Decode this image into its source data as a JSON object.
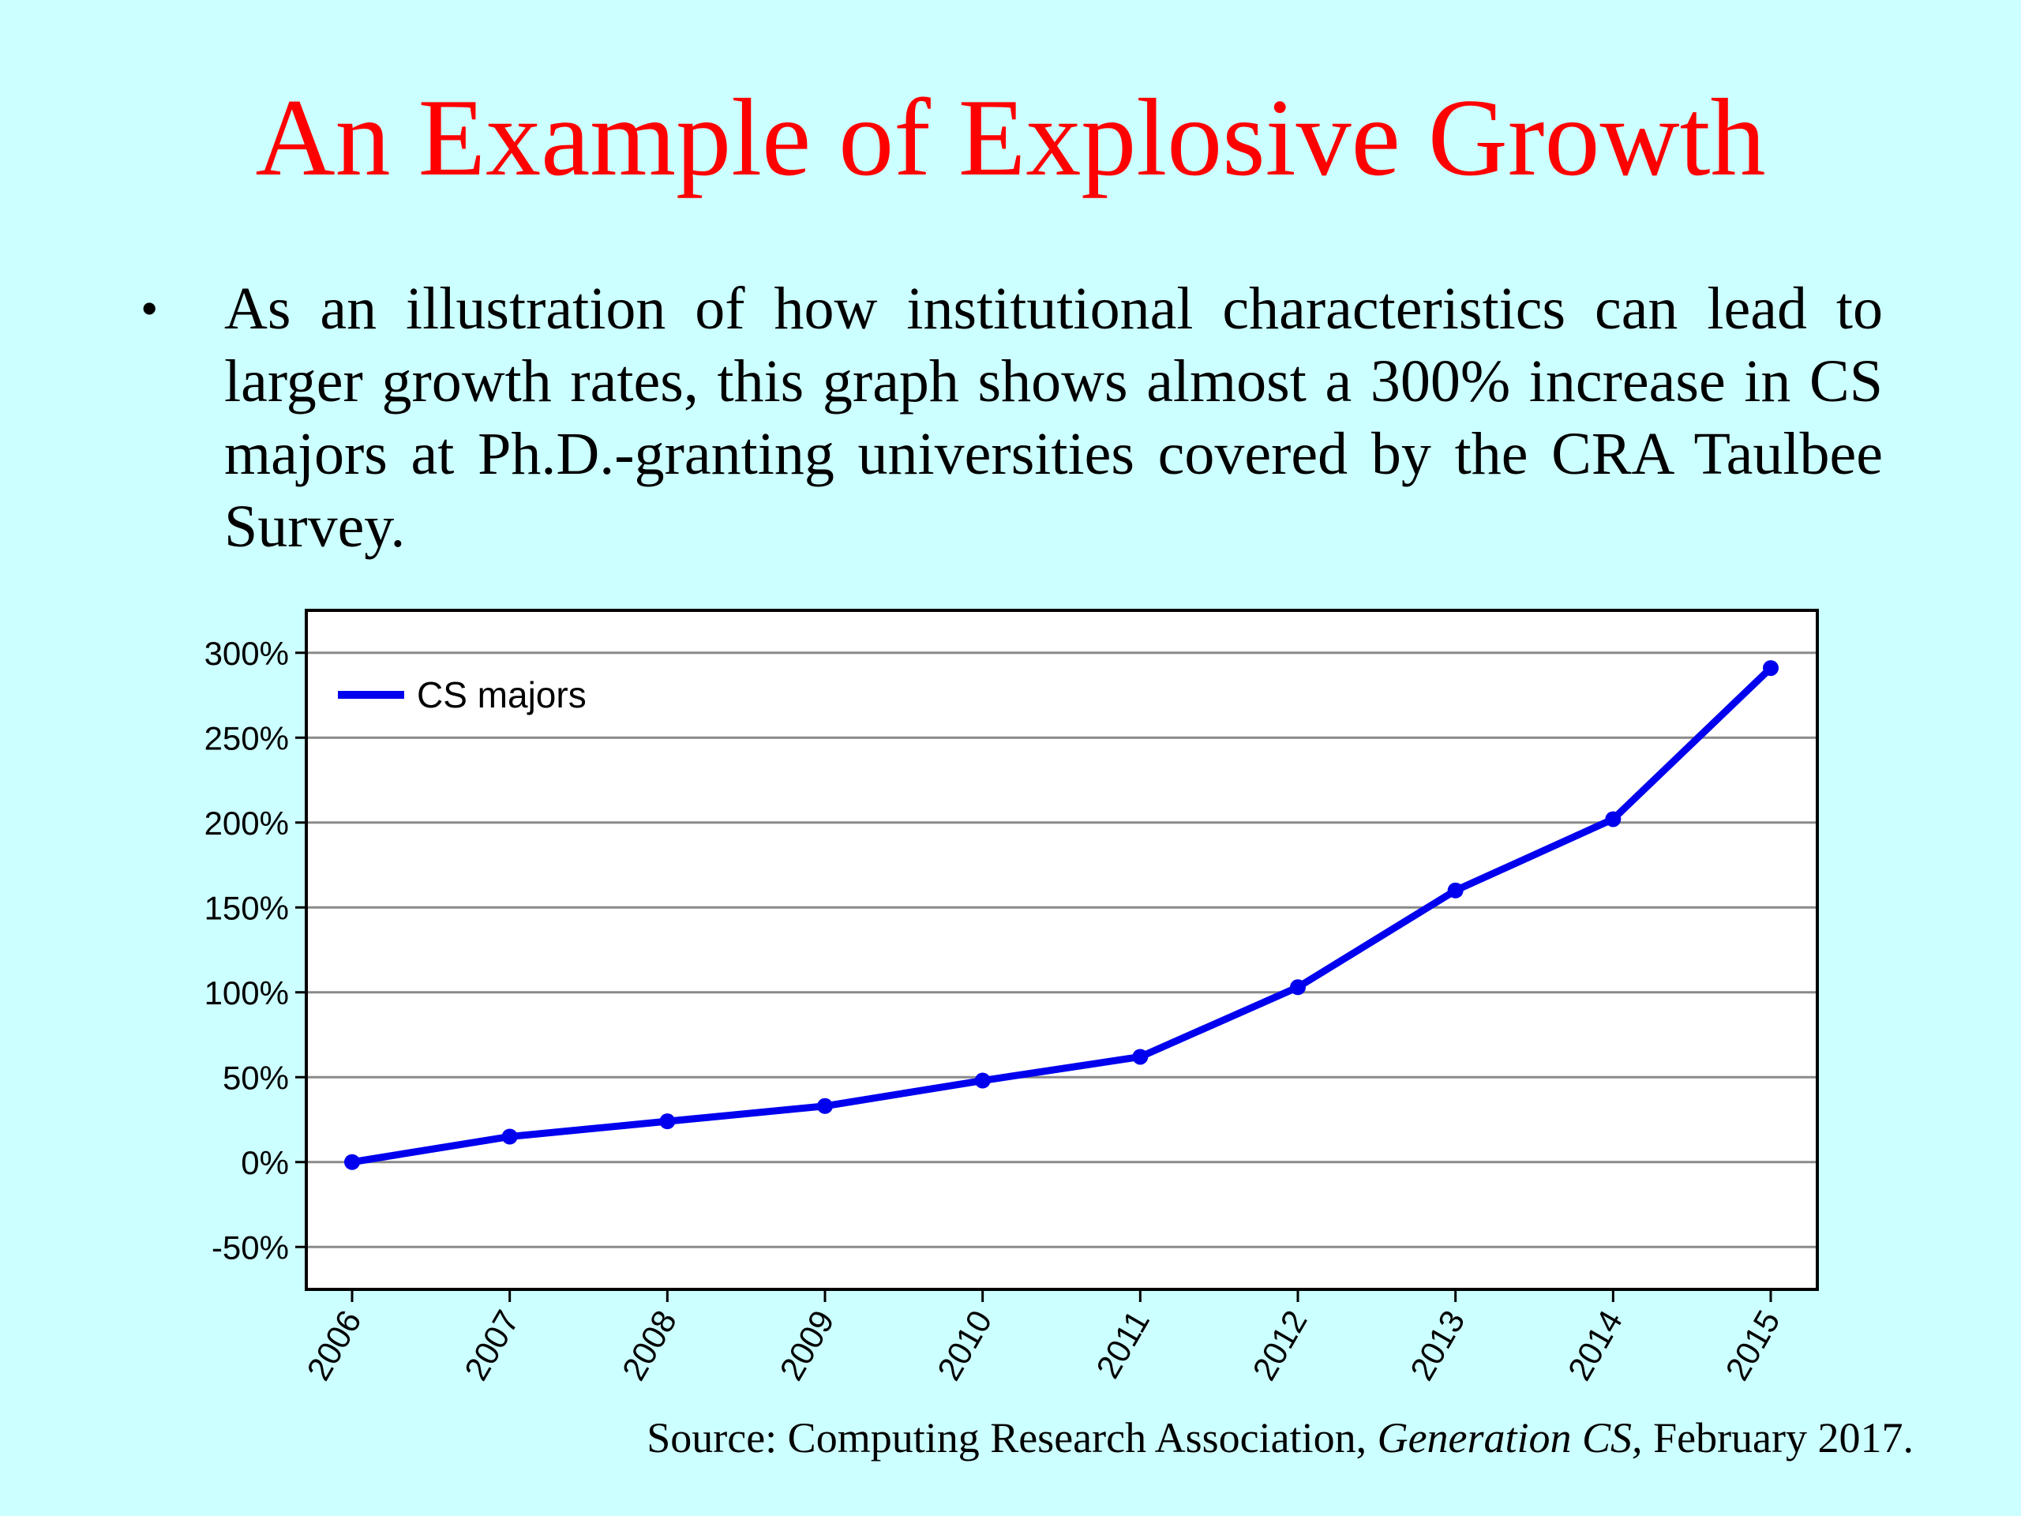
{
  "slide": {
    "title": "An Example of Explosive Growth",
    "bullet": "As an illustration of how institutional characteristics can lead to larger growth rates, this graph shows almost a 300% increase in CS majors at Ph.D.-granting universities covered by the CRA Taulbee Survey.",
    "bullet_glyph": "•",
    "source_prefix": "Source: Computing Research Association, ",
    "source_italic": "Generation CS,",
    "source_suffix": " February 2017."
  },
  "colors": {
    "background": "#ccffff",
    "title": "#ff0000",
    "series": "#0000ee"
  },
  "chart_data": {
    "type": "line",
    "title": "",
    "xlabel": "",
    "ylabel": "",
    "x": [
      "2006",
      "2007",
      "2008",
      "2009",
      "2010",
      "2011",
      "2012",
      "2013",
      "2014",
      "2015"
    ],
    "series": [
      {
        "name": "CS majors",
        "values": [
          0,
          15,
          24,
          33,
          48,
          62,
          103,
          160,
          202,
          291
        ]
      }
    ],
    "ylim": [
      -75,
      325
    ],
    "yticks": [
      -50,
      0,
      50,
      100,
      150,
      200,
      250,
      300
    ],
    "ytick_labels": [
      "-50%",
      "0%",
      "50%",
      "100%",
      "150%",
      "200%",
      "250%",
      "300%"
    ],
    "grid": true,
    "legend": "top-left"
  }
}
